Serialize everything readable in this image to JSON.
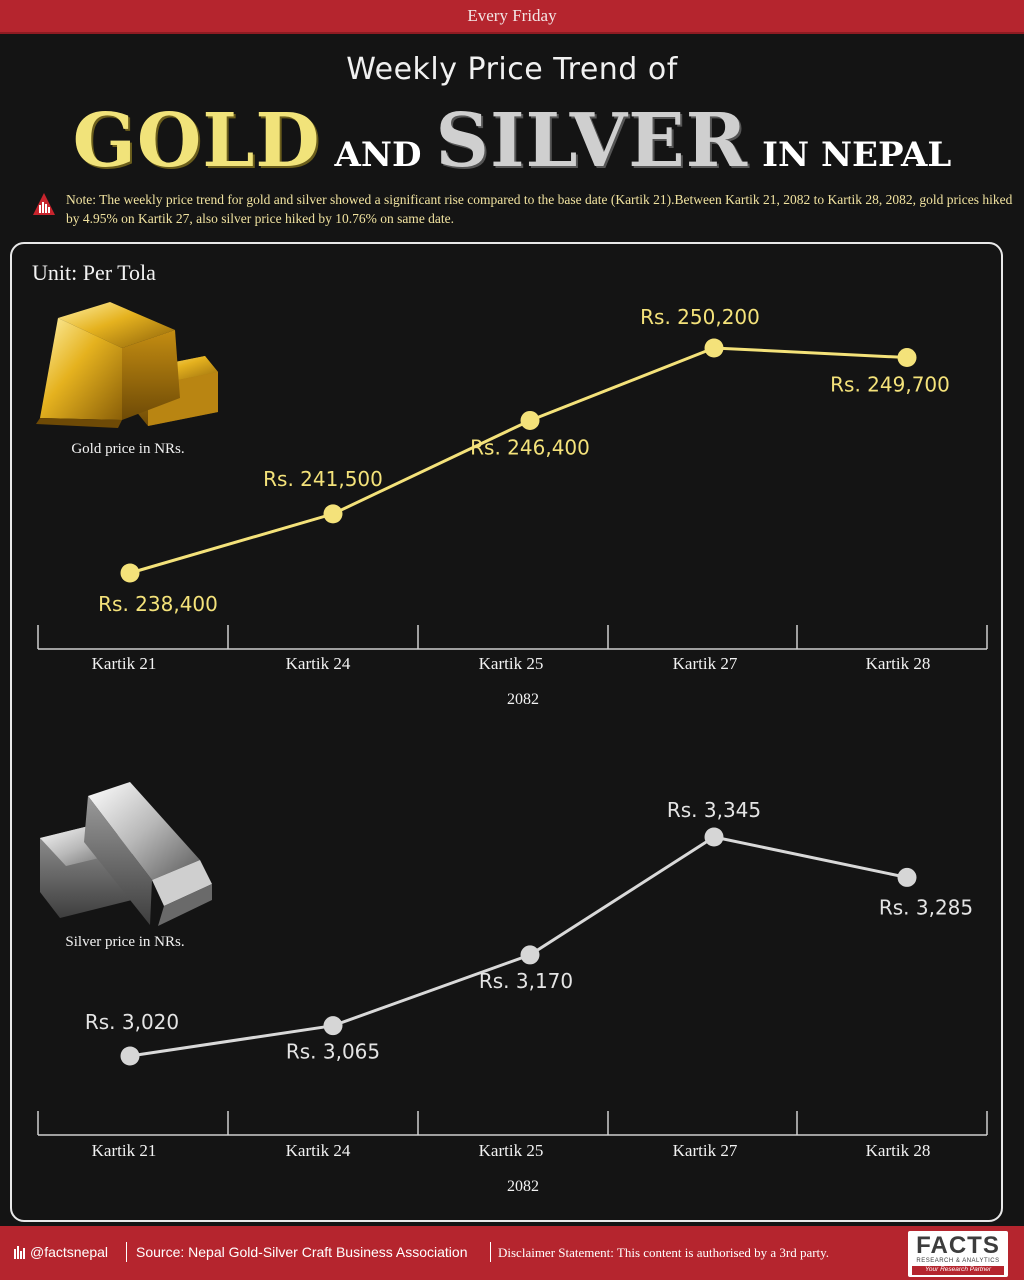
{
  "header": {
    "banner": "Every Friday",
    "title_line1": "Weekly Price Trend of",
    "title_gold": "GOLD",
    "title_and": "AND",
    "title_silver": "SILVER",
    "title_nepal": "IN NEPAL"
  },
  "note": "Note: The weekly price trend for gold and silver showed a significant rise compared to the base date (Kartik 21).Between Kartik 21, 2082 to Kartik 28, 2082, gold prices hiked by 4.95% on Kartik 27, also silver price hiked by 10.76% on same date.",
  "unit": "Unit: Per Tola",
  "gold_caption": "Gold price in NRs.",
  "silver_caption": "Silver price in NRs.",
  "chart_data": [
    {
      "type": "line",
      "name": "gold",
      "categories": [
        "Kartik 21",
        "Kartik 24",
        "Kartik 25",
        "Kartik 27",
        "Kartik 28"
      ],
      "xlabel": "2082",
      "values": [
        238400,
        241500,
        246400,
        250200,
        249700
      ],
      "labels": [
        "Rs. 238,400",
        "Rs. 241,500",
        "Rs. 246,400",
        "Rs. 250,200",
        "Rs. 249,700"
      ],
      "color": "#f4e27a"
    },
    {
      "type": "line",
      "name": "silver",
      "categories": [
        "Kartik 21",
        "Kartik 24",
        "Kartik 25",
        "Kartik 27",
        "Kartik 28"
      ],
      "xlabel": "2082",
      "values": [
        3020,
        3065,
        3170,
        3345,
        3285
      ],
      "labels": [
        "Rs. 3,020",
        "Rs. 3,065",
        "Rs. 3,170",
        "Rs. 3,345",
        "Rs. 3,285"
      ],
      "color": "#d9d9d9"
    }
  ],
  "footer": {
    "handle": "@factsnepal",
    "source": "Source: Nepal Gold-Silver Craft Business Association",
    "disclaimer": "Disclaimer Statement: This content is authorised by a 3rd party.",
    "logo_brand": "FACTS",
    "logo_sub1": "RESEARCH & ANALYTICS",
    "logo_sub2": "Your Research Partner"
  }
}
